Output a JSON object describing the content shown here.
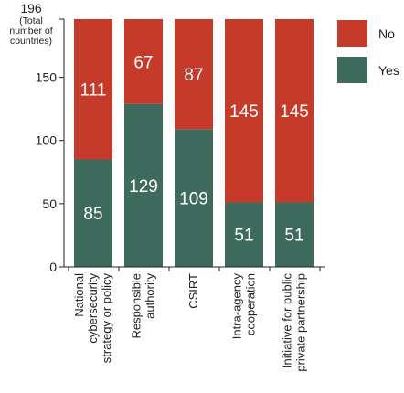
{
  "chart_data": {
    "type": "bar",
    "stacked": true,
    "categories": [
      [
        "National",
        "cybersecurity",
        "strategy or policy"
      ],
      [
        "Responsible",
        "authority"
      ],
      [
        "CSIRT"
      ],
      [
        "Intra-agency",
        "cooperation"
      ],
      [
        "Initiative for public",
        "private partnership"
      ]
    ],
    "series": [
      {
        "name": "Yes",
        "color": "#3e6b5d",
        "values": [
          85,
          129,
          109,
          51,
          51
        ]
      },
      {
        "name": "No",
        "color": "#c53a28",
        "values": [
          111,
          67,
          87,
          145,
          145
        ]
      }
    ],
    "ylim": [
      0,
      196
    ],
    "yticks": [
      0,
      50,
      100,
      150
    ],
    "ytop": {
      "value": "196",
      "note": [
        "(Total",
        "number of",
        "countries)"
      ]
    },
    "legend": {
      "position": "right",
      "items": [
        "No",
        "Yes"
      ]
    },
    "grid": false
  }
}
